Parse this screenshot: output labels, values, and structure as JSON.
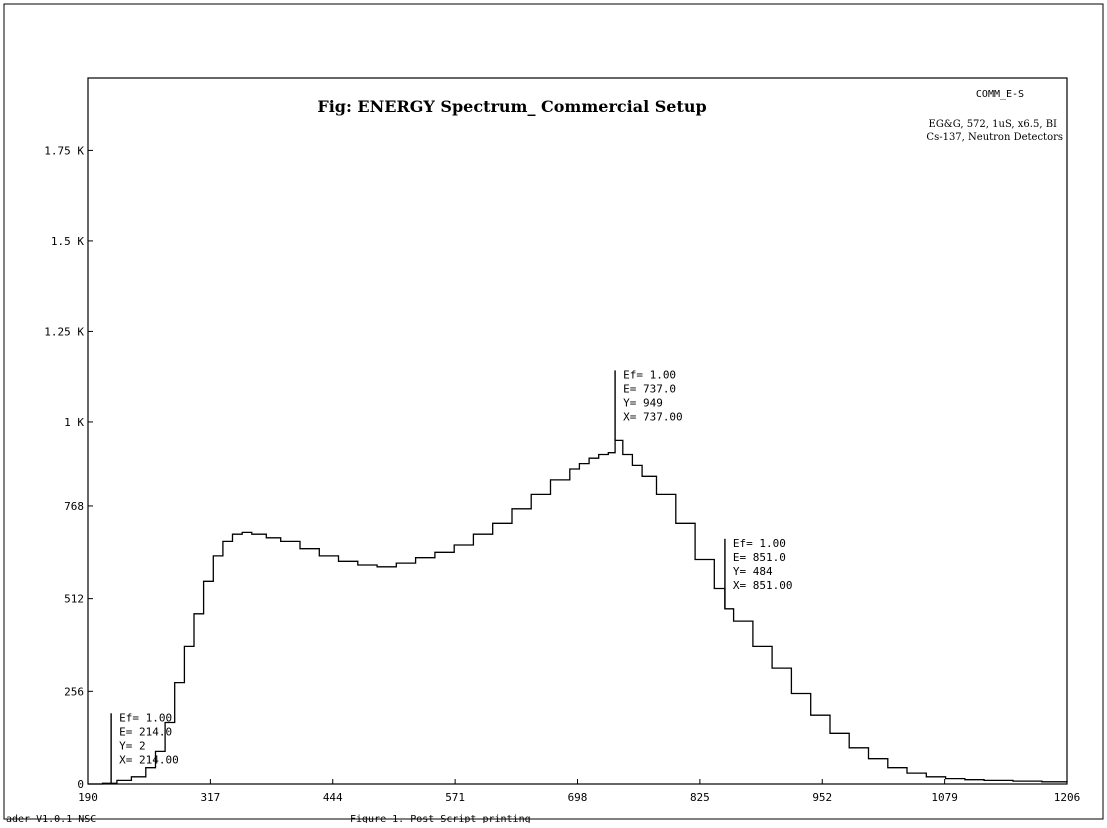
{
  "chart_data": {
    "type": "line",
    "title": "Fig: ENERGY Spectrum_ Commercial Setup",
    "tag": "COMM_E-S",
    "notes": [
      "EG&G, 572, 1uS, x6.5, BI",
      "Cs-137, Neutron Detectors"
    ],
    "xlabel": "",
    "ylabel": "",
    "xlim": [
      190,
      1206
    ],
    "ylim": [
      0,
      1950
    ],
    "x_ticks": [
      190,
      317,
      444,
      571,
      698,
      825,
      952,
      1079,
      1206
    ],
    "x_tick_labels": [
      "190",
      "317",
      "444",
      "571",
      "698",
      "825",
      "952",
      "1079",
      "1206"
    ],
    "y_ticks": [
      0,
      256,
      512,
      768,
      1000,
      1250,
      1500,
      1750
    ],
    "y_tick_labels": [
      "0",
      "256",
      "512",
      "768",
      "1 K",
      "1.25 K",
      "1.5 K",
      "1.75 K"
    ],
    "series": [
      {
        "x": [
          190,
          205,
          214,
          220,
          235,
          250,
          260,
          270,
          280,
          290,
          300,
          310,
          320,
          330,
          340,
          350,
          360,
          375,
          390,
          410,
          430,
          450,
          470,
          490,
          510,
          530,
          550,
          570,
          590,
          610,
          630,
          650,
          670,
          690,
          700,
          710,
          720,
          730,
          737,
          745,
          755,
          765,
          780,
          800,
          820,
          840,
          851,
          860,
          880,
          900,
          920,
          940,
          960,
          980,
          1000,
          1020,
          1040,
          1060,
          1080,
          1100,
          1120,
          1150,
          1180,
          1206
        ],
        "y": [
          0,
          2,
          2,
          10,
          20,
          45,
          90,
          170,
          280,
          380,
          470,
          560,
          630,
          670,
          690,
          695,
          690,
          680,
          670,
          650,
          630,
          615,
          605,
          600,
          610,
          625,
          640,
          660,
          690,
          720,
          760,
          800,
          840,
          870,
          885,
          900,
          910,
          915,
          949,
          910,
          880,
          850,
          800,
          720,
          620,
          540,
          484,
          450,
          380,
          320,
          250,
          190,
          140,
          100,
          70,
          45,
          30,
          20,
          15,
          12,
          10,
          8,
          6,
          5
        ]
      }
    ],
    "markers": [
      {
        "ef": "Ef=  1.00",
        "e": "E= 214.0",
        "y": "Y=   2",
        "x": "X= 214.00"
      },
      {
        "ef": "Ef=  1.00",
        "e": "E= 737.0",
        "y": "Y=  949",
        "x": "X=  737.00"
      },
      {
        "ef": "Ef=  1.00",
        "e": "E= 851.0",
        "y": "Y=  484",
        "x": "X= 851.00"
      }
    ],
    "footer_left": "ader V1.0.1  NSC",
    "footer_mid": "Figure 1. Post Script printing"
  }
}
